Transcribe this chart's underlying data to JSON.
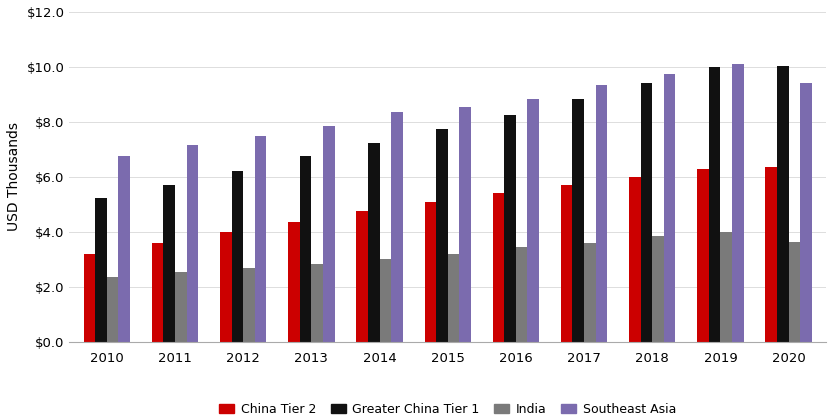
{
  "years": [
    2010,
    2011,
    2012,
    2013,
    2014,
    2015,
    2016,
    2017,
    2018,
    2019,
    2020
  ],
  "series": {
    "China Tier 2": [
      3.2,
      3.6,
      4.0,
      4.35,
      4.75,
      5.1,
      5.4,
      5.7,
      6.0,
      6.3,
      6.35
    ],
    "Greater China Tier 1": [
      5.25,
      5.7,
      6.2,
      6.75,
      7.25,
      7.75,
      8.25,
      8.85,
      9.4,
      10.0,
      10.05
    ],
    "India": [
      2.35,
      2.55,
      2.7,
      2.85,
      3.0,
      3.2,
      3.45,
      3.6,
      3.85,
      4.0,
      3.65
    ],
    "Southeast Asia": [
      6.75,
      7.15,
      7.5,
      7.85,
      8.35,
      8.55,
      8.85,
      9.35,
      9.75,
      10.1,
      9.4
    ]
  },
  "colors": {
    "China Tier 2": "#CC0000",
    "Greater China Tier 1": "#111111",
    "India": "#7a7a7a",
    "Southeast Asia": "#7B6BAE"
  },
  "ylabel": "USD Thousands",
  "ylim": [
    0,
    12.0
  ],
  "yticks": [
    0,
    2.0,
    4.0,
    6.0,
    8.0,
    10.0,
    12.0
  ],
  "ytick_labels": [
    "$0.0",
    "$2.0",
    "$4.0",
    "$6.0",
    "$8.0",
    "$10.0",
    "$12.0"
  ],
  "bar_width": 0.17,
  "group_width": 0.75,
  "legend_order": [
    "China Tier 2",
    "Greater China Tier 1",
    "India",
    "Southeast Asia"
  ],
  "figsize": [
    8.33,
    4.17
  ],
  "dpi": 100
}
